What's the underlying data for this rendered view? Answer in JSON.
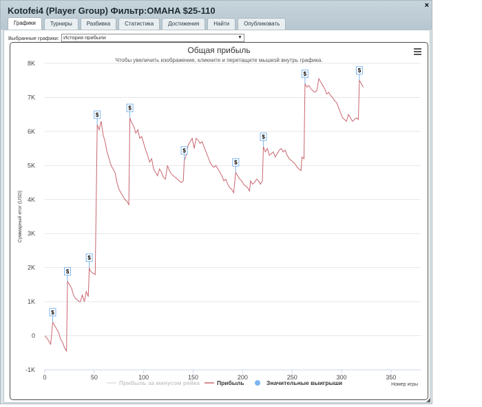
{
  "window": {
    "title": "Kotofei4 (Player Group) Фильтр:OMAHA $25-110",
    "close_label": "×",
    "tabs": [
      "Графики",
      "Турниры",
      "Разбивка",
      "Статистика",
      "Достижения",
      "Найти",
      "Опубликовать"
    ],
    "active_tab": 0
  },
  "selector": {
    "label": "Выбранные графики:",
    "value": "История прибыли"
  },
  "chart_data": {
    "type": "line",
    "title": "Общая прибыль",
    "subtitle": "Чтобы увеличить изображение, кликните и перетащите мышкой внутрь графика.",
    "xlabel": "Номер игры",
    "ylabel": "Суммарный итог (USD)",
    "xlim": [
      0,
      380
    ],
    "ylim": [
      -1000,
      8000
    ],
    "x_ticks": [
      0,
      50,
      100,
      150,
      200,
      250,
      300,
      350
    ],
    "y_ticks": [
      -1000,
      0,
      1000,
      2000,
      3000,
      4000,
      5000,
      6000,
      7000,
      8000
    ],
    "y_tick_labels": [
      "-1K",
      "0",
      "1K",
      "2K",
      "3K",
      "4K",
      "5K",
      "6K",
      "7K",
      "8K"
    ],
    "grid": true,
    "legend_position": "bottom",
    "legend": [
      "Прибыль за минусом рейка",
      "Прибыль",
      "Значительные выигрыши"
    ],
    "series": [
      {
        "name": "Прибыль",
        "color": "#c8646e",
        "points": [
          [
            0,
            0
          ],
          [
            3,
            -100
          ],
          [
            6,
            -250
          ],
          [
            8,
            400
          ],
          [
            10,
            300
          ],
          [
            12,
            200
          ],
          [
            14,
            100
          ],
          [
            16,
            -100
          ],
          [
            18,
            -200
          ],
          [
            20,
            -350
          ],
          [
            22,
            -450
          ],
          [
            23,
            1600
          ],
          [
            25,
            1500
          ],
          [
            27,
            1400
          ],
          [
            29,
            1200
          ],
          [
            31,
            1100
          ],
          [
            33,
            1050
          ],
          [
            35,
            1000
          ],
          [
            36,
            1000
          ],
          [
            38,
            1200
          ],
          [
            40,
            1000
          ],
          [
            42,
            1300
          ],
          [
            44,
            1150
          ],
          [
            45,
            2000
          ],
          [
            46,
            1900
          ],
          [
            48,
            1850
          ],
          [
            51,
            1800
          ],
          [
            53,
            6200
          ],
          [
            55,
            6050
          ],
          [
            57,
            6300
          ],
          [
            59,
            5900
          ],
          [
            61,
            5700
          ],
          [
            63,
            5400
          ],
          [
            65,
            5200
          ],
          [
            67,
            5000
          ],
          [
            69,
            4900
          ],
          [
            71,
            4800
          ],
          [
            73,
            4500
          ],
          [
            75,
            4300
          ],
          [
            77,
            4200
          ],
          [
            79,
            4100
          ],
          [
            81,
            4000
          ],
          [
            83,
            3950
          ],
          [
            85,
            3850
          ],
          [
            86,
            6400
          ],
          [
            88,
            6250
          ],
          [
            90,
            6150
          ],
          [
            92,
            5950
          ],
          [
            94,
            6050
          ],
          [
            96,
            5800
          ],
          [
            98,
            5850
          ],
          [
            100,
            5650
          ],
          [
            102,
            5450
          ],
          [
            104,
            5300
          ],
          [
            106,
            5100
          ],
          [
            108,
            5200
          ],
          [
            110,
            4900
          ],
          [
            112,
            4800
          ],
          [
            114,
            4700
          ],
          [
            116,
            4900
          ],
          [
            118,
            4800
          ],
          [
            120,
            4650
          ],
          [
            122,
            4600
          ],
          [
            124,
            5000
          ],
          [
            126,
            4850
          ],
          [
            128,
            4750
          ],
          [
            130,
            4700
          ],
          [
            132,
            4650
          ],
          [
            134,
            4600
          ],
          [
            136,
            4550
          ],
          [
            138,
            4500
          ],
          [
            140,
            4550
          ],
          [
            141,
            5150
          ],
          [
            143,
            5300
          ],
          [
            145,
            5600
          ],
          [
            147,
            5700
          ],
          [
            149,
            5800
          ],
          [
            151,
            5500
          ],
          [
            153,
            5800
          ],
          [
            155,
            5750
          ],
          [
            157,
            5650
          ],
          [
            159,
            5700
          ],
          [
            161,
            5550
          ],
          [
            163,
            5400
          ],
          [
            165,
            5250
          ],
          [
            167,
            5100
          ],
          [
            169,
            5000
          ],
          [
            171,
            4950
          ],
          [
            173,
            5000
          ],
          [
            175,
            4900
          ],
          [
            177,
            4800
          ],
          [
            179,
            4700
          ],
          [
            181,
            4550
          ],
          [
            183,
            4600
          ],
          [
            185,
            4450
          ],
          [
            187,
            4350
          ],
          [
            189,
            4300
          ],
          [
            191,
            4200
          ],
          [
            193,
            4800
          ],
          [
            195,
            4700
          ],
          [
            197,
            4600
          ],
          [
            199,
            4550
          ],
          [
            201,
            4450
          ],
          [
            203,
            4400
          ],
          [
            205,
            4350
          ],
          [
            207,
            4250
          ],
          [
            208,
            4550
          ],
          [
            210,
            4450
          ],
          [
            212,
            4500
          ],
          [
            214,
            4600
          ],
          [
            216,
            4550
          ],
          [
            218,
            4450
          ],
          [
            220,
            4550
          ],
          [
            221,
            5550
          ],
          [
            223,
            5400
          ],
          [
            225,
            5500
          ],
          [
            227,
            5300
          ],
          [
            229,
            5350
          ],
          [
            231,
            5400
          ],
          [
            233,
            5250
          ],
          [
            235,
            5350
          ],
          [
            237,
            5450
          ],
          [
            239,
            5500
          ],
          [
            241,
            5400
          ],
          [
            243,
            5450
          ],
          [
            245,
            5300
          ],
          [
            247,
            5200
          ],
          [
            249,
            5150
          ],
          [
            251,
            5100
          ],
          [
            253,
            5050
          ],
          [
            255,
            4950
          ],
          [
            257,
            4900
          ],
          [
            259,
            4850
          ],
          [
            260,
            5250
          ],
          [
            262,
            5200
          ],
          [
            263,
            7400
          ],
          [
            265,
            7300
          ],
          [
            267,
            7350
          ],
          [
            269,
            7250
          ],
          [
            271,
            7200
          ],
          [
            273,
            7150
          ],
          [
            275,
            7200
          ],
          [
            277,
            7550
          ],
          [
            279,
            7450
          ],
          [
            281,
            7350
          ],
          [
            283,
            7250
          ],
          [
            285,
            7100
          ],
          [
            287,
            7150
          ],
          [
            289,
            7050
          ],
          [
            291,
            7000
          ],
          [
            293,
            6900
          ],
          [
            295,
            6850
          ],
          [
            297,
            6700
          ],
          [
            299,
            6550
          ],
          [
            301,
            6400
          ],
          [
            303,
            6350
          ],
          [
            305,
            6300
          ],
          [
            307,
            6500
          ],
          [
            309,
            6400
          ],
          [
            311,
            6300
          ],
          [
            313,
            6350
          ],
          [
            315,
            6400
          ],
          [
            317,
            6350
          ],
          [
            318,
            7500
          ],
          [
            320,
            7400
          ],
          [
            322,
            7300
          ]
        ]
      }
    ],
    "big_wins_label": "$",
    "big_wins": [
      [
        8,
        400
      ],
      [
        23,
        1600
      ],
      [
        45,
        2000
      ],
      [
        53,
        6200
      ],
      [
        86,
        6400
      ],
      [
        141,
        5150
      ],
      [
        193,
        4800
      ],
      [
        221,
        5550
      ],
      [
        263,
        7400
      ],
      [
        318,
        7500
      ]
    ]
  }
}
